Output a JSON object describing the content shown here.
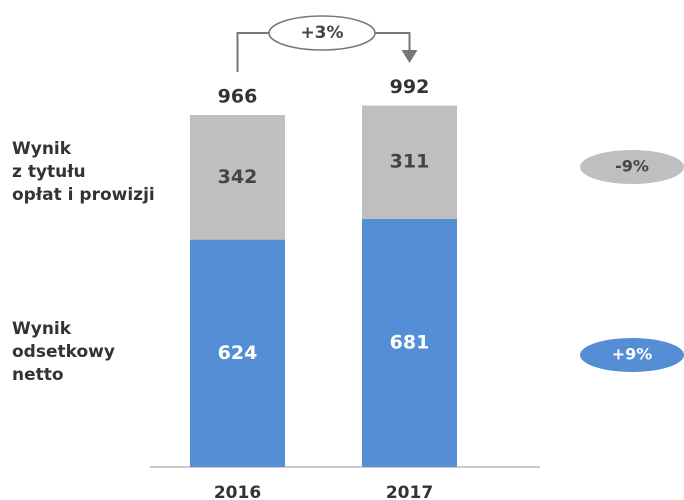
{
  "chart_data": {
    "type": "stacked_bar",
    "categories": [
      "2016",
      "2017"
    ],
    "series": [
      {
        "name": "Wynik\nodsetkowy\nnetto",
        "color": "#558ed5",
        "values": [
          624,
          681
        ],
        "change": "+9%"
      },
      {
        "name": "Wynik\nz tytułu\nopłat i prowizji",
        "color": "#bfbfbf",
        "values": [
          342,
          311
        ],
        "change": "-9%"
      }
    ],
    "totals": [
      966,
      992
    ],
    "total_change": "+3%"
  }
}
